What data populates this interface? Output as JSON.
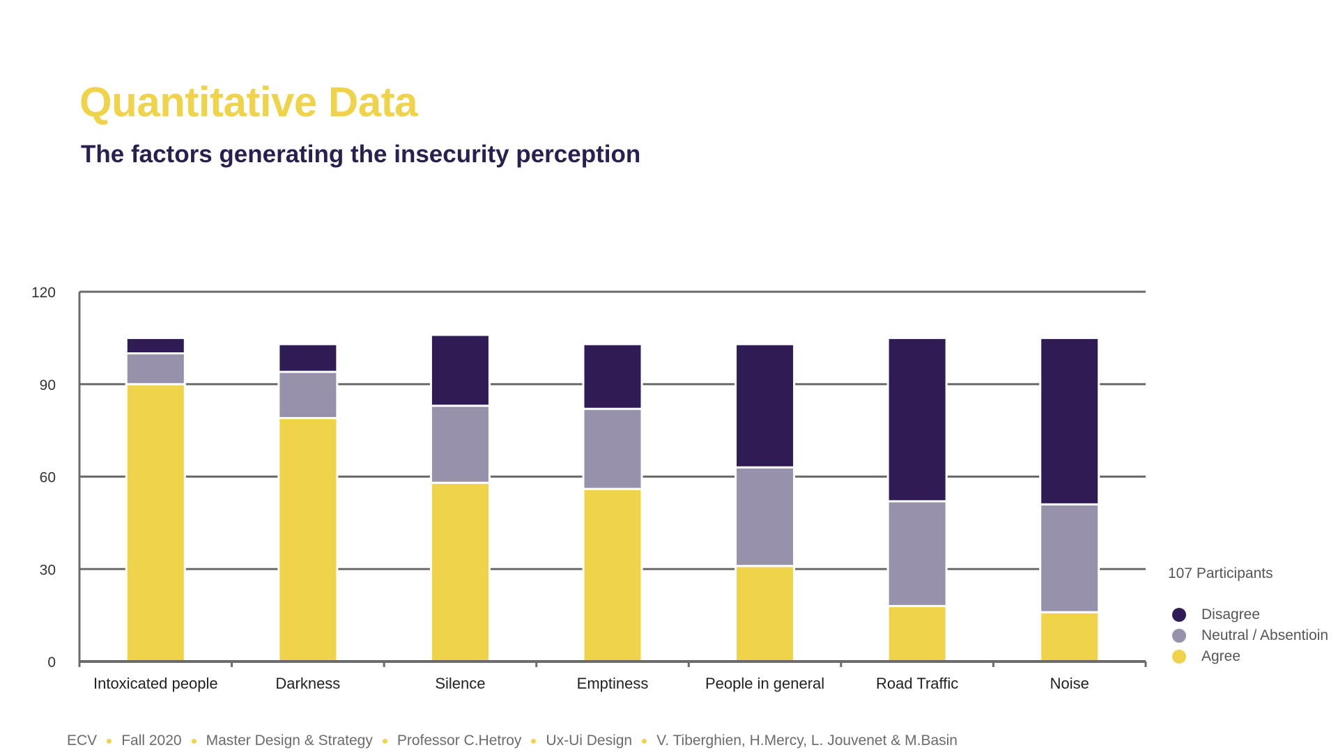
{
  "header": {
    "title": "Quantitative Data",
    "subtitle": "The factors generating the insecurity perception"
  },
  "colors": {
    "agree": "#efd44b",
    "neutral": "#9891ac",
    "disagree": "#2f1c54",
    "axis": "#6b6b6b",
    "title": "#efd44b",
    "subtitle": "#2a1f4f"
  },
  "chart_data": {
    "type": "bar",
    "stacked": true,
    "categories": [
      "Intoxicated people",
      "Darkness",
      "Silence",
      "Emptiness",
      "People in general",
      "Road Traffic",
      "Noise"
    ],
    "series": [
      {
        "name": "Agree",
        "values": [
          90,
          79,
          58,
          56,
          31,
          18,
          16
        ]
      },
      {
        "name": "Neutral / Absentioin",
        "values": [
          10,
          15,
          25,
          26,
          32,
          34,
          35
        ]
      },
      {
        "name": "Disagree",
        "values": [
          5,
          9,
          23,
          21,
          40,
          53,
          54
        ]
      }
    ],
    "yticks": [
      0,
      30,
      60,
      90,
      120
    ],
    "ylim": [
      0,
      120
    ],
    "grid": true,
    "legend": "right",
    "legend_note": "107 Participants"
  },
  "footer": {
    "items": [
      "ECV",
      "Fall 2020",
      "Master Design & Strategy",
      "Professor C.Hetroy",
      "Ux-Ui Design",
      "V. Tiberghien, H.Mercy, L. Jouvenet & M.Basin"
    ]
  }
}
